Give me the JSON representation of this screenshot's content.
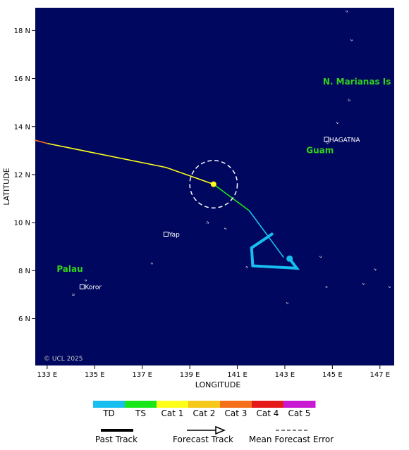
{
  "map": {
    "credit": "© UCL 2025",
    "ocean_color": "#00075e",
    "land_outline_color": "#ffffff",
    "x_label": "LONGITUDE",
    "y_label": "LATITUDE",
    "lon_range": [
      132.5,
      147.6
    ],
    "lat_range": [
      4.05,
      18.95
    ],
    "lon_ticks": [
      {
        "value": 133,
        "label": "133 E"
      },
      {
        "value": 135,
        "label": "135 E"
      },
      {
        "value": 137,
        "label": "137 E"
      },
      {
        "value": 139,
        "label": "139 E"
      },
      {
        "value": 141,
        "label": "141 E"
      },
      {
        "value": 143,
        "label": "143 E"
      },
      {
        "value": 145,
        "label": "145 E"
      },
      {
        "value": 147,
        "label": "147 E"
      }
    ],
    "lat_ticks": [
      {
        "value": 6,
        "label": "6 N"
      },
      {
        "value": 8,
        "label": "8 N"
      },
      {
        "value": 10,
        "label": "10 N"
      },
      {
        "value": 12,
        "label": "12 N"
      },
      {
        "value": 14,
        "label": "14 N"
      },
      {
        "value": 16,
        "label": "16 N"
      },
      {
        "value": 18,
        "label": "18 N"
      }
    ],
    "regions": [
      {
        "name": "N. Marianas Is",
        "lon": 144.6,
        "lat": 15.75,
        "color": "#32d21e"
      },
      {
        "name": "Guam",
        "lon": 143.9,
        "lat": 12.9,
        "color": "#32d21e"
      },
      {
        "name": "Palau",
        "lon": 133.4,
        "lat": 7.95,
        "color": "#32d21e"
      }
    ],
    "cities": [
      {
        "name": "HAGATNA",
        "lon": 144.75,
        "lat": 13.47
      },
      {
        "name": "Yap",
        "lon": 138.0,
        "lat": 9.52
      },
      {
        "name": "Koror",
        "lon": 134.47,
        "lat": 7.33
      }
    ],
    "islands": [
      {
        "lon": 144.8,
        "lat": 13.35,
        "r": 0.12
      },
      {
        "lon": 145.7,
        "lat": 15.1,
        "r": 0.08
      },
      {
        "lon": 145.2,
        "lat": 14.15,
        "r": 0.06
      },
      {
        "lon": 139.75,
        "lat": 10.0,
        "r": 0.08
      },
      {
        "lon": 140.5,
        "lat": 9.75,
        "r": 0.03
      },
      {
        "lon": 145.6,
        "lat": 18.8,
        "r": 0.03
      },
      {
        "lon": 145.8,
        "lat": 17.6,
        "r": 0.03
      },
      {
        "lon": 137.4,
        "lat": 8.3,
        "r": 0.05
      },
      {
        "lon": 141.4,
        "lat": 8.15,
        "r": 0.03
      },
      {
        "lon": 144.75,
        "lat": 7.32,
        "r": 0.04
      },
      {
        "lon": 146.3,
        "lat": 7.45,
        "r": 0.06
      },
      {
        "lon": 147.4,
        "lat": 7.32,
        "r": 0.03
      },
      {
        "lon": 146.8,
        "lat": 8.05,
        "r": 0.03
      },
      {
        "lon": 143.1,
        "lat": 6.65,
        "r": 0.03
      },
      {
        "lon": 144.5,
        "lat": 8.58,
        "r": 0.03
      },
      {
        "lon": 134.1,
        "lat": 7.0,
        "r": 0.08
      },
      {
        "lon": 134.62,
        "lat": 7.6,
        "r": 0.05
      }
    ],
    "past_track": [
      {
        "lon": 142.95,
        "lat": 8.55,
        "category": "TD"
      },
      {
        "lon": 141.5,
        "lat": 10.5,
        "category": "TS"
      },
      {
        "lon": 140.0,
        "lat": 11.6,
        "category": "Cat 1"
      }
    ],
    "forecast_track": [
      {
        "lon": 140.0,
        "lat": 11.6,
        "category": "Cat 1"
      },
      {
        "lon": 138.0,
        "lat": 12.3,
        "category": "Cat 1"
      },
      {
        "lon": 133.0,
        "lat": 13.3,
        "category": "Cat 1"
      },
      {
        "lon": 132.5,
        "lat": 13.43,
        "category": "Cat 3"
      }
    ],
    "early_loop": [
      {
        "lon": 143.5,
        "lat": 8.1
      },
      {
        "lon": 141.65,
        "lat": 8.2
      },
      {
        "lon": 141.6,
        "lat": 8.95
      },
      {
        "lon": 142.5,
        "lat": 9.55
      }
    ],
    "current_position": {
      "lon": 140.0,
      "lat": 11.6
    },
    "start_position": {
      "lon": 143.2,
      "lat": 8.5
    },
    "error_circle": {
      "lon": 140.0,
      "lat": 11.6,
      "radius_deg": 1.0
    }
  },
  "legend": {
    "categories": [
      {
        "label": "TD",
        "color": "#19bef0"
      },
      {
        "label": "TS",
        "color": "#19e619"
      },
      {
        "label": "Cat 1",
        "color": "#ffff19"
      },
      {
        "label": "Cat 2",
        "color": "#f5c819"
      },
      {
        "label": "Cat 3",
        "color": "#f56e19"
      },
      {
        "label": "Cat 4",
        "color": "#e61919"
      },
      {
        "label": "Cat 5",
        "color": "#c819d2"
      }
    ],
    "past_track_label": "Past Track",
    "forecast_track_label": "Forecast Track",
    "error_label": "Mean Forecast Error"
  }
}
